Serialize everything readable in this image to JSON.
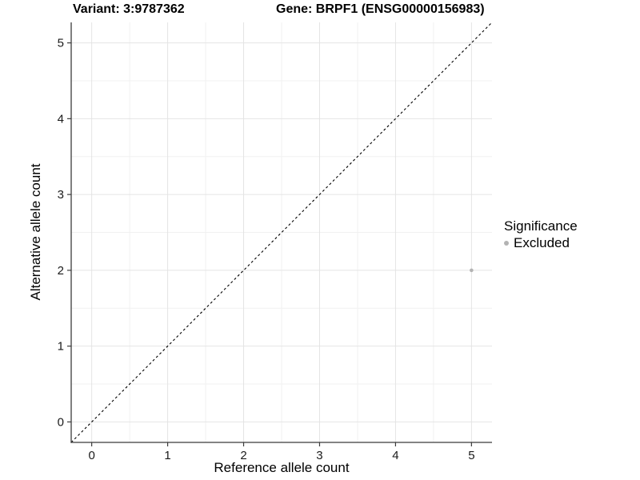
{
  "page": {
    "background": "#ffffff"
  },
  "titles": {
    "variant": "Variant: 3:9787362",
    "gene": "Gene: BRPF1 (ENSG00000156983)"
  },
  "legend": {
    "title": "Significance"
  },
  "chart_data": {
    "type": "scatter",
    "title_left": "Variant: 3:9787362",
    "title_right": "Gene: BRPF1 (ENSG00000156983)",
    "xlabel": "Reference allele count",
    "ylabel": "Alternative allele count",
    "xlim": [
      -0.27,
      5.27
    ],
    "ylim": [
      -0.27,
      5.27
    ],
    "xticks": [
      0,
      1,
      2,
      3,
      4,
      5
    ],
    "yticks": [
      0,
      1,
      2,
      3,
      4,
      5
    ],
    "xminor": [
      0.5,
      1.5,
      2.5,
      3.5,
      4.5
    ],
    "yminor": [
      0.5,
      1.5,
      2.5,
      3.5,
      4.5
    ],
    "grid": true,
    "legend_position": "right",
    "legend_title": "Significance",
    "identity_line": {
      "style": "dashed",
      "color": "#000000",
      "from": -0.27,
      "to": 5.27
    },
    "series": [
      {
        "name": "Excluded",
        "color": "#b3b3b3",
        "points": [
          {
            "x": 5,
            "y": 2
          }
        ]
      }
    ]
  },
  "colors": {
    "grid_major": "#e4e4e4",
    "grid_minor": "#f1f1f1",
    "axis_line": "#3b3b3b",
    "tick_mark": "#3b3b3b",
    "tick_label": "#1a1a1a",
    "point_fill": "#b3b3b3"
  }
}
